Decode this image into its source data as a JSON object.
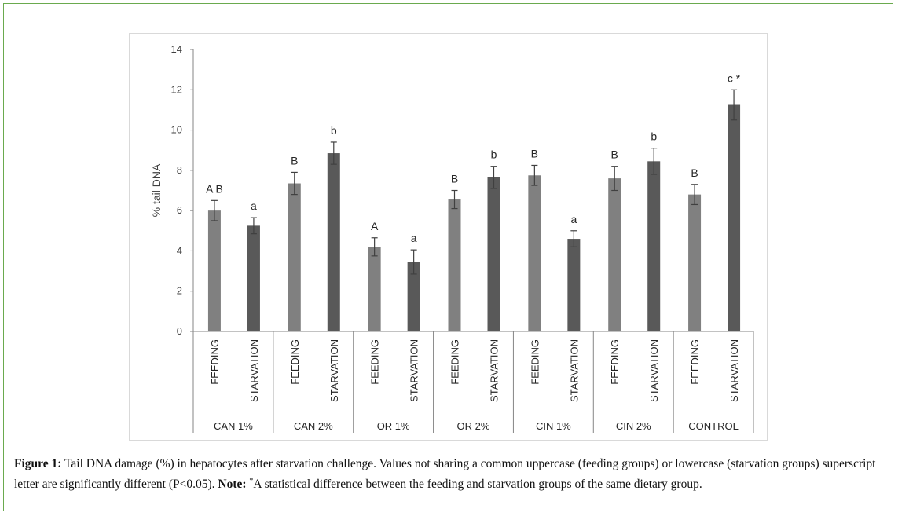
{
  "chart_data": {
    "type": "bar",
    "ylabel": "% tail DNA",
    "ylim": [
      0,
      14
    ],
    "yticks": [
      0,
      2,
      4,
      6,
      8,
      10,
      12,
      14
    ],
    "groups": [
      "CAN 1%",
      "CAN 2%",
      "OR 1%",
      "OR 2%",
      "CIN 1%",
      "CIN 2%",
      "CONTROL"
    ],
    "subcategories": [
      "FEEDING",
      "STARVATION"
    ],
    "bars": [
      {
        "group": "CAN 1%",
        "sub": "FEEDING",
        "value": 6.0,
        "error": 0.5,
        "label": "A B"
      },
      {
        "group": "CAN 1%",
        "sub": "STARVATION",
        "value": 5.25,
        "error": 0.4,
        "label": "a"
      },
      {
        "group": "CAN 2%",
        "sub": "FEEDING",
        "value": 7.35,
        "error": 0.55,
        "label": "B"
      },
      {
        "group": "CAN 2%",
        "sub": "STARVATION",
        "value": 8.85,
        "error": 0.55,
        "label": "b"
      },
      {
        "group": "OR 1%",
        "sub": "FEEDING",
        "value": 4.2,
        "error": 0.45,
        "label": "A"
      },
      {
        "group": "OR 1%",
        "sub": "STARVATION",
        "value": 3.45,
        "error": 0.6,
        "label": "a"
      },
      {
        "group": "OR 2%",
        "sub": "FEEDING",
        "value": 6.55,
        "error": 0.45,
        "label": "B"
      },
      {
        "group": "OR 2%",
        "sub": "STARVATION",
        "value": 7.65,
        "error": 0.55,
        "label": "b"
      },
      {
        "group": "CIN 1%",
        "sub": "FEEDING",
        "value": 7.75,
        "error": 0.5,
        "label": "B"
      },
      {
        "group": "CIN 1%",
        "sub": "STARVATION",
        "value": 4.6,
        "error": 0.4,
        "label": "a"
      },
      {
        "group": "CIN 2%",
        "sub": "FEEDING",
        "value": 7.6,
        "error": 0.6,
        "label": "B"
      },
      {
        "group": "CIN 2%",
        "sub": "STARVATION",
        "value": 8.45,
        "error": 0.65,
        "label": "b"
      },
      {
        "group": "CONTROL",
        "sub": "FEEDING",
        "value": 6.8,
        "error": 0.5,
        "label": "B"
      },
      {
        "group": "CONTROL",
        "sub": "STARVATION",
        "value": 11.25,
        "error": 0.75,
        "label": "c *"
      }
    ],
    "colors": {
      "FEEDING": "#808080",
      "STARVATION": "#595959"
    },
    "grid": false,
    "legend": "none"
  },
  "caption": {
    "figure_label": "Figure 1:",
    "text": " Tail DNA damage (%) in hepatocytes after starvation challenge. Values not sharing a common uppercase (feeding groups) or lowercase (starvation groups) superscript letter are significantly different (P<0.05). ",
    "note_label": "Note:",
    "note_sup": "*",
    "note_text": "A statistical difference between the feeding and starvation groups of the same dietary group."
  }
}
